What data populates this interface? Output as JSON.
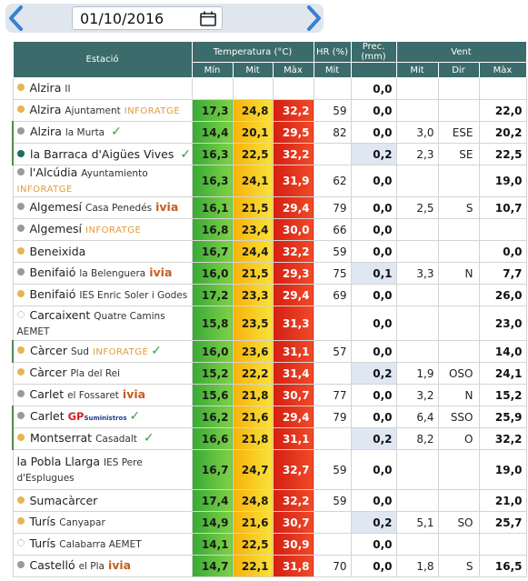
{
  "datebar": {
    "date_value": "01/10/2016",
    "prev_label": "‹",
    "next_label": "›"
  },
  "table": {
    "headers": {
      "station": "Estació",
      "temperature": "Temperatura (°C)",
      "humidity": "HR (%)",
      "precip": "Prec. (mm)",
      "wind": "Vent",
      "t_min": "Mín",
      "t_mit": "Mit",
      "t_max": "Màx",
      "hr_mit": "Mit",
      "w_mit": "Mit",
      "w_dir": "Dir",
      "w_max": "Màx"
    },
    "rows": [
      {
        "name": "Alzira",
        "sub": "II",
        "brand": "",
        "brand_type": "",
        "check": false,
        "dot": "orange",
        "min": "",
        "mit": "",
        "max": "",
        "hr": "",
        "prec": "0,0",
        "prec_blue": false,
        "w_mit": "",
        "w_dir": "",
        "w_max": ""
      },
      {
        "name": "Alzira",
        "sub": "Ajuntament",
        "brand": "INFORATGE",
        "brand_type": "inforatge",
        "check": false,
        "dot": "orange",
        "min": "17,3",
        "mit": "24,8",
        "max": "32,2",
        "hr": "59",
        "prec": "0,0",
        "prec_blue": false,
        "w_mit": "",
        "w_dir": "",
        "w_max": "22,0"
      },
      {
        "name": "Alzira",
        "sub": "la Murta",
        "brand": "",
        "brand_type": "",
        "check": true,
        "dot": "grey",
        "min": "14,4",
        "mit": "20,1",
        "max": "29,5",
        "hr": "82",
        "prec": "0,0",
        "prec_blue": false,
        "w_mit": "3,0",
        "w_dir": "ESE",
        "w_max": "20,2"
      },
      {
        "name": "la Barraca d'Aigües Vives",
        "sub": "",
        "brand": "",
        "brand_type": "",
        "check": true,
        "dot": "teal",
        "min": "16,3",
        "mit": "22,5",
        "max": "32,2",
        "hr": "",
        "prec": "0,2",
        "prec_blue": true,
        "w_mit": "2,3",
        "w_dir": "SE",
        "w_max": "22,5"
      },
      {
        "name": "l'Alcúdia",
        "sub": "Ayuntamiento",
        "brand": "INFORATGE",
        "brand_type": "inforatge",
        "check": false,
        "dot": "grey",
        "min": "16,3",
        "mit": "24,1",
        "max": "31,9",
        "hr": "62",
        "prec": "0,0",
        "prec_blue": false,
        "w_mit": "",
        "w_dir": "",
        "w_max": "19,0"
      },
      {
        "name": "Algemesí",
        "sub": "Casa Penedés",
        "brand": "ivia",
        "brand_type": "ivia",
        "check": false,
        "dot": "grey",
        "min": "16,1",
        "mit": "21,5",
        "max": "29,4",
        "hr": "79",
        "prec": "0,0",
        "prec_blue": false,
        "w_mit": "2,5",
        "w_dir": "S",
        "w_max": "10,7"
      },
      {
        "name": "Algemesí",
        "sub": "",
        "brand": "INFORATGE",
        "brand_type": "inforatge",
        "check": false,
        "dot": "grey",
        "min": "16,8",
        "mit": "23,4",
        "max": "30,0",
        "hr": "66",
        "prec": "0,0",
        "prec_blue": false,
        "w_mit": "",
        "w_dir": "",
        "w_max": ""
      },
      {
        "name": "Beneixida",
        "sub": "",
        "brand": "",
        "brand_type": "",
        "check": false,
        "dot": "orange",
        "min": "16,7",
        "mit": "24,4",
        "max": "32,2",
        "hr": "59",
        "prec": "0,0",
        "prec_blue": false,
        "w_mit": "",
        "w_dir": "",
        "w_max": "0,0"
      },
      {
        "name": "Benifaió",
        "sub": "la Belenguera",
        "brand": "ivia",
        "brand_type": "ivia",
        "check": false,
        "dot": "grey",
        "min": "16,0",
        "mit": "21,5",
        "max": "29,3",
        "hr": "75",
        "prec": "0,1",
        "prec_blue": true,
        "w_mit": "3,3",
        "w_dir": "N",
        "w_max": "7,7"
      },
      {
        "name": "Benifaió",
        "sub": "IES Enric Soler i Godes",
        "brand": "",
        "brand_type": "",
        "check": false,
        "dot": "orange",
        "min": "17,2",
        "mit": "23,3",
        "max": "29,4",
        "hr": "69",
        "prec": "0,0",
        "prec_blue": false,
        "w_mit": "",
        "w_dir": "",
        "w_max": "26,0"
      },
      {
        "name": "Carcaixent",
        "sub": "Quatre Camins AEMET",
        "brand": "",
        "brand_type": "",
        "check": false,
        "dot": "ring",
        "min": "15,8",
        "mit": "23,5",
        "max": "31,3",
        "hr": "",
        "prec": "0,0",
        "prec_blue": false,
        "w_mit": "",
        "w_dir": "",
        "w_max": "23,0"
      },
      {
        "name": "Càrcer",
        "sub": "Sud",
        "brand": "INFORATGE",
        "brand_type": "inforatge",
        "check": true,
        "dot": "orange",
        "min": "16,0",
        "mit": "23,6",
        "max": "31,1",
        "hr": "57",
        "prec": "0,0",
        "prec_blue": false,
        "w_mit": "",
        "w_dir": "",
        "w_max": "14,0"
      },
      {
        "name": "Càrcer",
        "sub": "Pla del Rei",
        "brand": "",
        "brand_type": "",
        "check": false,
        "dot": "orange",
        "min": "15,2",
        "mit": "22,2",
        "max": "31,4",
        "hr": "",
        "prec": "0,2",
        "prec_blue": true,
        "w_mit": "1,9",
        "w_dir": "OSO",
        "w_max": "24,1"
      },
      {
        "name": "Carlet",
        "sub": "el Fossaret",
        "brand": "ivia",
        "brand_type": "ivia",
        "check": false,
        "dot": "grey",
        "min": "15,6",
        "mit": "21,8",
        "max": "30,7",
        "hr": "77",
        "prec": "0,0",
        "prec_blue": false,
        "w_mit": "3,2",
        "w_dir": "N",
        "w_max": "15,2"
      },
      {
        "name": "Carlet",
        "sub": "",
        "brand": "GP",
        "brand_type": "gp",
        "brand2": "Suministros",
        "check": true,
        "dot": "grey",
        "min": "16,2",
        "mit": "21,6",
        "max": "29,4",
        "hr": "79",
        "prec": "0,0",
        "prec_blue": false,
        "w_mit": "6,4",
        "w_dir": "SSO",
        "w_max": "25,9"
      },
      {
        "name": "Montserrat",
        "sub": "Casadalt",
        "brand": "",
        "brand_type": "",
        "check": true,
        "dot": "orange",
        "min": "16,6",
        "mit": "21,8",
        "max": "31,1",
        "hr": "",
        "prec": "0,2",
        "prec_blue": true,
        "w_mit": "8,2",
        "w_dir": "O",
        "w_max": "32,2"
      },
      {
        "name": "la Pobla Llarga",
        "sub": "IES Pere d'Esplugues",
        "brand": "",
        "brand_type": "",
        "check": false,
        "dot": "",
        "min": "16,7",
        "mit": "24,7",
        "max": "32,7",
        "hr": "59",
        "prec": "0,0",
        "prec_blue": false,
        "w_mit": "",
        "w_dir": "",
        "w_max": "19,0"
      },
      {
        "name": "Sumacàrcer",
        "sub": "",
        "brand": "",
        "brand_type": "",
        "check": false,
        "dot": "orange",
        "min": "17,4",
        "mit": "24,8",
        "max": "32,2",
        "hr": "59",
        "prec": "0,0",
        "prec_blue": false,
        "w_mit": "",
        "w_dir": "",
        "w_max": "21,0"
      },
      {
        "name": "Turís",
        "sub": "Canyapar",
        "brand": "",
        "brand_type": "",
        "check": false,
        "dot": "orange",
        "min": "14,9",
        "mit": "21,6",
        "max": "30,7",
        "hr": "",
        "prec": "0,2",
        "prec_blue": true,
        "w_mit": "5,1",
        "w_dir": "SO",
        "w_max": "25,7"
      },
      {
        "name": "Turís",
        "sub": "Calabarra AEMET",
        "brand": "",
        "brand_type": "",
        "check": false,
        "dot": "ring",
        "min": "14,1",
        "mit": "22,5",
        "max": "30,9",
        "hr": "",
        "prec": "0,0",
        "prec_blue": false,
        "w_mit": "",
        "w_dir": "",
        "w_max": ""
      },
      {
        "name": "Castelló",
        "sub": "el Pla",
        "brand": "ivia",
        "brand_type": "ivia",
        "check": false,
        "dot": "grey",
        "min": "14,7",
        "mit": "22,1",
        "max": "31,8",
        "hr": "70",
        "prec": "0,0",
        "prec_blue": false,
        "w_mit": "1,8",
        "w_dir": "S",
        "w_max": "16,5"
      }
    ]
  }
}
